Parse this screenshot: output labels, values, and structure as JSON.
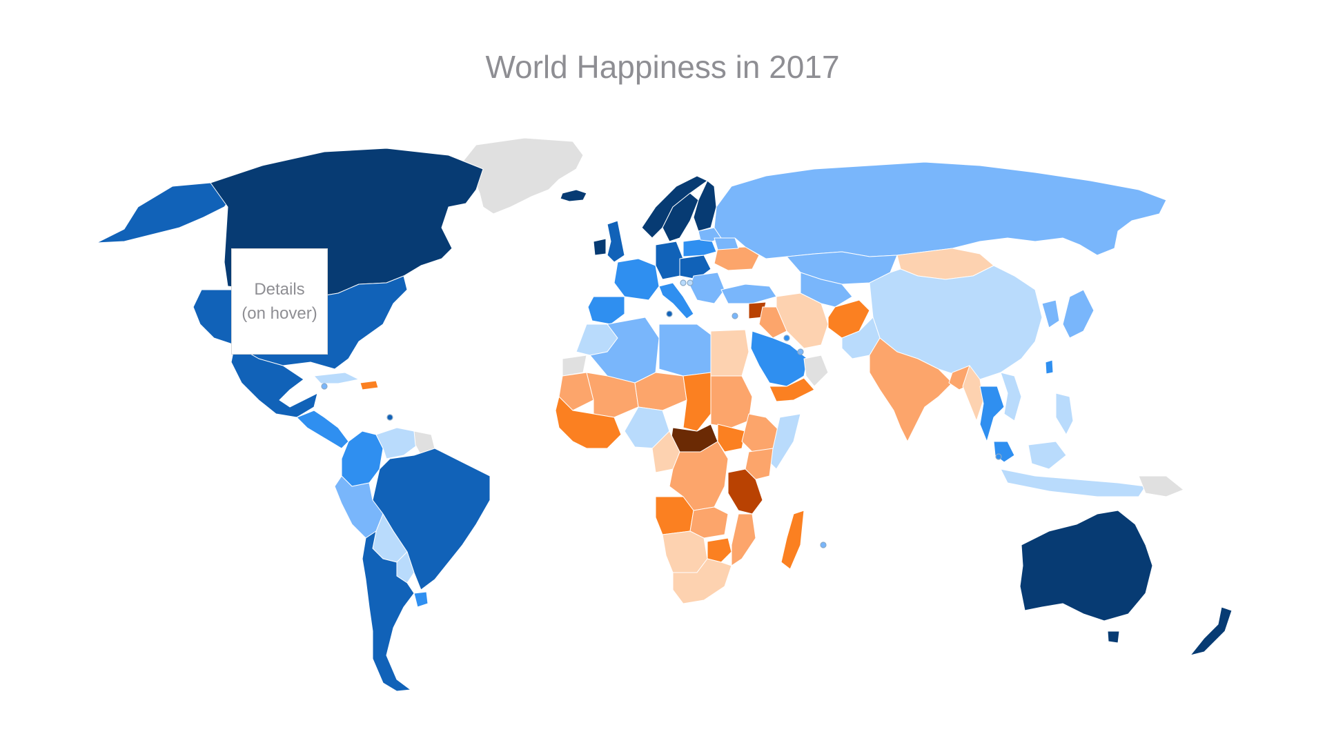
{
  "title": "World Happiness in 2017",
  "tooltip": {
    "line1": "Details",
    "line2": "(on hover)"
  },
  "palette": {
    "very_happy": "#073b73",
    "happy": "#1162b8",
    "above_avg": "#2f8ff0",
    "mid_high": "#79b6fb",
    "mid": "#b9dbfc",
    "mid_low": "#fdd2b0",
    "below_avg": "#fca56b",
    "unhappy": "#fb8021",
    "very_unhappy": "#b94202",
    "least_happy": "#6b2a04",
    "no_data": "#e0e0e0"
  }
}
